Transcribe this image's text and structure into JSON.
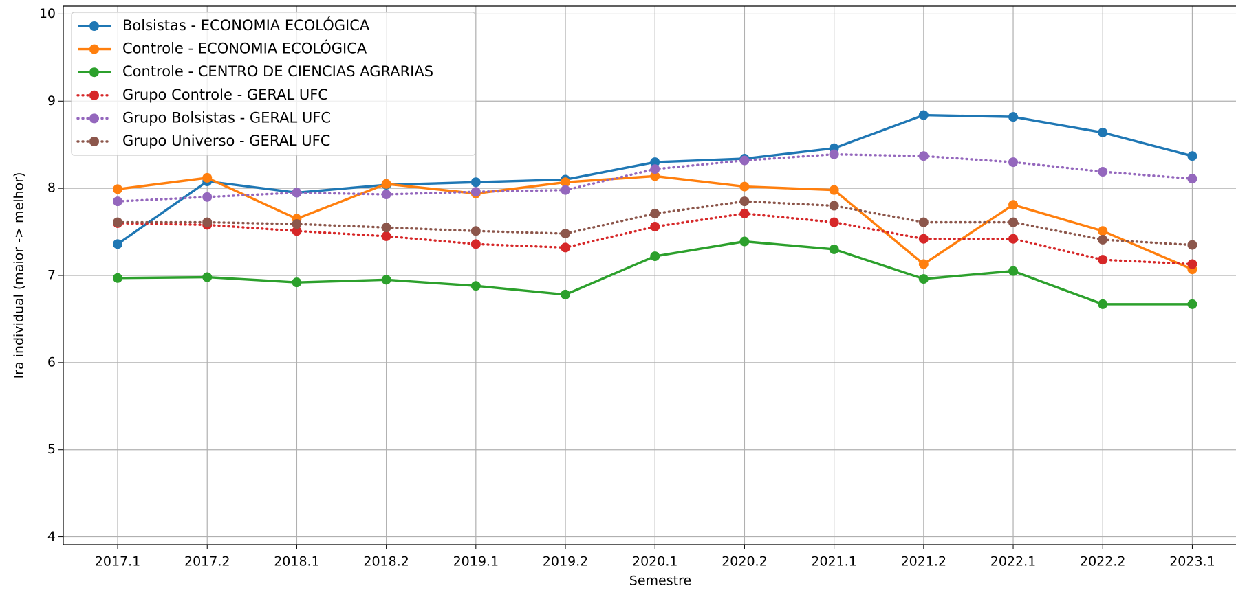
{
  "chart_data": {
    "type": "line",
    "xlabel": "Semestre",
    "ylabel": "Ira individual (maior -> melhor)",
    "categories": [
      "2017.1",
      "2017.2",
      "2018.1",
      "2018.2",
      "2019.1",
      "2019.2",
      "2020.1",
      "2020.2",
      "2021.1",
      "2021.2",
      "2022.1",
      "2022.2",
      "2023.1"
    ],
    "ylim": [
      3.91,
      10.09
    ],
    "yticks": [
      4,
      5,
      6,
      7,
      8,
      9,
      10
    ],
    "grid": true,
    "legend": "upper left",
    "series": [
      {
        "name": "Bolsistas - ECONOMIA ECOLÓGICA",
        "color": "#1f77b4",
        "linestyle": "solid",
        "values": [
          7.36,
          8.08,
          7.95,
          8.04,
          8.07,
          8.1,
          8.3,
          8.34,
          8.46,
          8.84,
          8.82,
          8.64,
          8.37
        ]
      },
      {
        "name": "Controle - ECONOMIA ECOLÓGICA",
        "color": "#ff7f0e",
        "linestyle": "solid",
        "values": [
          7.99,
          8.12,
          7.65,
          8.05,
          7.94,
          8.07,
          8.14,
          8.02,
          7.98,
          7.13,
          7.81,
          7.51,
          7.07
        ]
      },
      {
        "name": "Controle - CENTRO DE CIENCIAS AGRARIAS",
        "color": "#2ca02c",
        "linestyle": "solid",
        "values": [
          6.97,
          6.98,
          6.92,
          6.95,
          6.88,
          6.78,
          7.22,
          7.39,
          7.3,
          6.96,
          7.05,
          6.67,
          6.67
        ]
      },
      {
        "name": "Grupo Controle - GERAL UFC",
        "color": "#d62728",
        "linestyle": "dotted",
        "values": [
          7.6,
          7.58,
          7.51,
          7.45,
          7.36,
          7.32,
          7.56,
          7.71,
          7.61,
          7.42,
          7.42,
          7.18,
          7.13
        ]
      },
      {
        "name": "Grupo Bolsistas - GERAL UFC",
        "color": "#9467bd",
        "linestyle": "dotted",
        "values": [
          7.85,
          7.9,
          7.95,
          7.93,
          7.96,
          7.98,
          8.22,
          8.32,
          8.39,
          8.37,
          8.3,
          8.19,
          8.11
        ]
      },
      {
        "name": "Grupo Universo - GERAL UFC",
        "color": "#8c564b",
        "linestyle": "dotted",
        "values": [
          7.61,
          7.61,
          7.59,
          7.55,
          7.51,
          7.48,
          7.71,
          7.85,
          7.8,
          7.61,
          7.61,
          7.41,
          7.35
        ]
      }
    ]
  }
}
